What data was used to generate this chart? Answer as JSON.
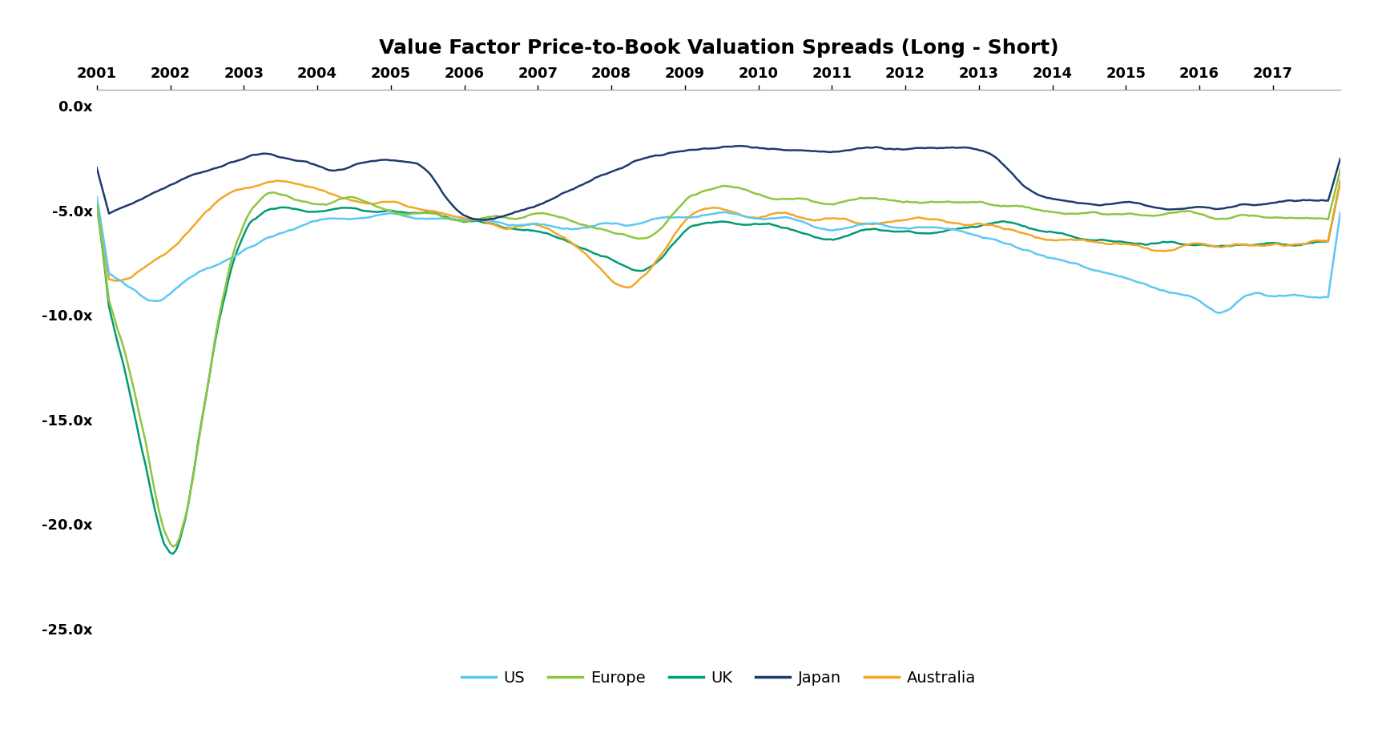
{
  "title": "Value Factor Price-to-Book Valuation Spreads (Long - Short)",
  "colors": {
    "US": "#5BC8F5",
    "Europe": "#8DC63F",
    "UK": "#009B77",
    "Japan": "#1F3A6E",
    "Australia": "#F5A623"
  },
  "legend_order": [
    "US",
    "Europe",
    "UK",
    "Japan",
    "Australia"
  ],
  "ylim": [
    -27,
    0.8
  ],
  "yticks": [
    0.0,
    -5.0,
    -10.0,
    -15.0,
    -20.0,
    -25.0
  ],
  "xlim_start": 2001.0,
  "xlim_end": 2017.92,
  "xticks": [
    2001,
    2002,
    2003,
    2004,
    2005,
    2006,
    2007,
    2008,
    2009,
    2010,
    2011,
    2012,
    2013,
    2014,
    2015,
    2016,
    2017
  ],
  "background_color": "#FFFFFF",
  "linewidth": 1.8
}
